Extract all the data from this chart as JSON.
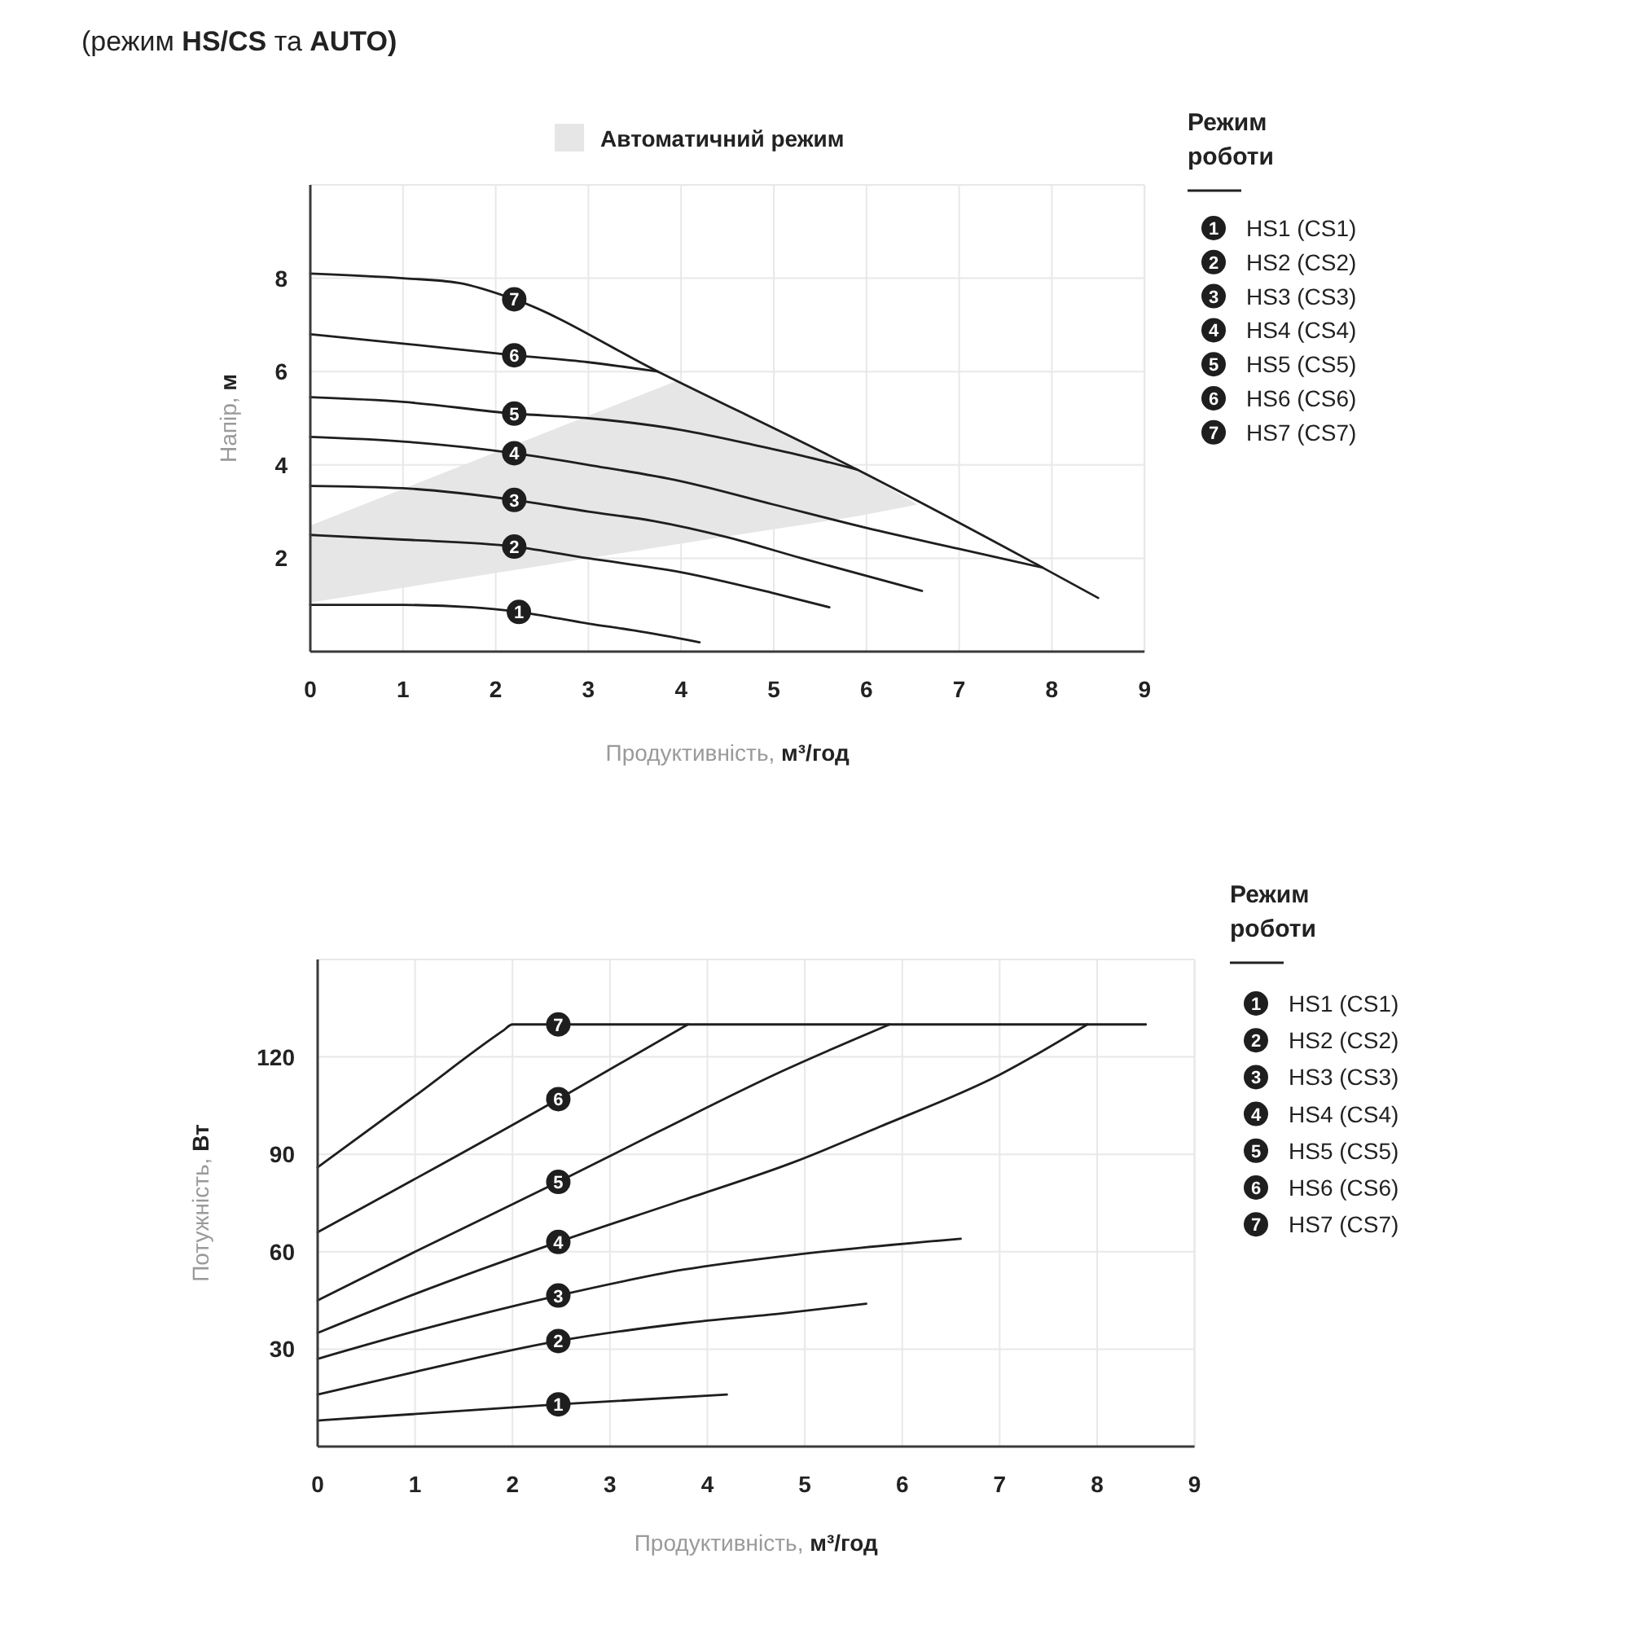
{
  "chart_data": [
    {
      "type": "line",
      "title": "(режим HS/CS та AUTO)",
      "xlabel": "Продуктивність, м³/год",
      "ylabel": "Напір, м",
      "legend_title": "Режим роботи",
      "xlim": [
        0,
        9
      ],
      "xticks": [
        0,
        1,
        2,
        3,
        4,
        5,
        6,
        7,
        8,
        9
      ],
      "ylim": [
        0,
        10
      ],
      "yticks": [
        2,
        4,
        6,
        8
      ],
      "grid": true,
      "legend": "top right",
      "series": [
        {
          "name": "Автоматичний режим",
          "color": "#e6e6e6",
          "x": [
            0,
            3.95,
            5.9,
            6.55
          ],
          "values": [
            null,
            null,
            null,
            null
          ],
          "lower": [
            1.05,
            2.3,
            2.9,
            3.15
          ],
          "upper": [
            2.7,
            5.8,
            3.9,
            3.15
          ]
        },
        {
          "name": "HS1 (CS1)",
          "color": "#1e1e1e",
          "x": [
            0,
            1,
            1.75,
            2.25,
            3,
            3.5,
            4.2
          ],
          "values": [
            1.0,
            1.0,
            0.95,
            0.85,
            0.6,
            0.45,
            0.2
          ]
        },
        {
          "name": "HS2 (CS2)",
          "color": "#1e1e1e",
          "x": [
            0,
            1,
            2.2,
            3,
            4,
            5,
            5.6
          ],
          "values": [
            2.5,
            2.4,
            2.25,
            2.0,
            1.7,
            1.25,
            0.95
          ]
        },
        {
          "name": "HS3 (CS3)",
          "color": "#1e1e1e",
          "x": [
            0,
            1,
            2.2,
            3,
            3.7,
            4.5,
            5.3,
            6.6
          ],
          "values": [
            3.55,
            3.5,
            3.25,
            3.0,
            2.8,
            2.45,
            2.0,
            1.3
          ]
        },
        {
          "name": "HS4 (CS4)",
          "color": "#1e1e1e",
          "x": [
            0,
            1,
            2.2,
            3,
            4,
            5,
            6,
            7,
            7.9
          ],
          "values": [
            4.6,
            4.5,
            4.25,
            4.0,
            3.65,
            3.15,
            2.65,
            2.2,
            1.8
          ]
        },
        {
          "name": "HS5 (CS5)",
          "color": "#1e1e1e",
          "x": [
            0,
            1,
            2.2,
            3,
            4,
            4.85,
            5.3,
            5.9
          ],
          "values": [
            5.45,
            5.35,
            5.1,
            5.0,
            4.75,
            4.4,
            4.2,
            3.9
          ]
        },
        {
          "name": "HS6 (CS6)",
          "color": "#1e1e1e",
          "x": [
            0,
            1,
            2.2,
            3,
            3.75
          ],
          "values": [
            6.8,
            6.6,
            6.35,
            6.2,
            6.0
          ]
        },
        {
          "name": "HS7 (CS7)",
          "color": "#1e1e1e",
          "x": [
            0,
            1,
            1.6,
            2.2,
            3.75,
            5.9,
            7.9,
            8.5
          ],
          "values": [
            8.1,
            8.0,
            7.9,
            7.55,
            6.0,
            3.9,
            1.8,
            1.15
          ]
        }
      ],
      "annotations": [
        {
          "text": "1",
          "x": 2.25,
          "y": 0.85
        },
        {
          "text": "2",
          "x": 2.2,
          "y": 2.25
        },
        {
          "text": "3",
          "x": 2.2,
          "y": 3.25
        },
        {
          "text": "4",
          "x": 2.2,
          "y": 4.25
        },
        {
          "text": "5",
          "x": 2.2,
          "y": 5.1
        },
        {
          "text": "6",
          "x": 2.2,
          "y": 6.35
        },
        {
          "text": "7",
          "x": 2.2,
          "y": 7.55
        }
      ]
    },
    {
      "type": "line",
      "xlabel": "Продуктивність, м³/год",
      "ylabel": "Потужність, Вт",
      "legend_title": "Режим роботи",
      "xlim": [
        0,
        9
      ],
      "xticks": [
        0,
        1,
        2,
        3,
        4,
        5,
        6,
        7,
        8,
        9
      ],
      "ylim": [
        0,
        150
      ],
      "yticks": [
        30,
        60,
        90,
        120
      ],
      "grid": true,
      "legend": "top right",
      "series": [
        {
          "name": "HS1 (CS1)",
          "color": "#1e1e1e",
          "x": [
            0,
            2.47,
            4.2
          ],
          "values": [
            8,
            13,
            16
          ]
        },
        {
          "name": "HS2 (CS2)",
          "color": "#1e1e1e",
          "x": [
            0,
            1,
            2.47,
            3.76,
            4.76,
            5.63
          ],
          "values": [
            16,
            23,
            32.5,
            38,
            41,
            44
          ]
        },
        {
          "name": "HS3 (CS3)",
          "color": "#1e1e1e",
          "x": [
            0,
            1,
            2.47,
            3.76,
            4.88,
            6.6
          ],
          "values": [
            27,
            35.5,
            46.5,
            54.5,
            59,
            64
          ]
        },
        {
          "name": "HS4 (CS4)",
          "color": "#1e1e1e",
          "x": [
            0,
            1,
            2.47,
            3.76,
            4.88,
            5.77,
            7,
            7.9
          ],
          "values": [
            35,
            47,
            63,
            76,
            87.5,
            98.5,
            114.5,
            130
          ]
        },
        {
          "name": "HS5 (CS5)",
          "color": "#1e1e1e",
          "x": [
            0,
            1,
            2.47,
            3.5,
            4.76,
            5.87
          ],
          "values": [
            45,
            60,
            81.5,
            97,
            115.5,
            130
          ]
        },
        {
          "name": "HS6 (CS6)",
          "color": "#1e1e1e",
          "x": [
            0,
            2.47,
            3.8
          ],
          "values": [
            66,
            107,
            130
          ]
        },
        {
          "name": "HS7 (CS7)",
          "color": "#1e1e1e",
          "x": [
            0,
            1,
            1.9,
            2,
            8.5
          ],
          "values": [
            86,
            108,
            128,
            130,
            130
          ]
        }
      ],
      "annotations": [
        {
          "text": "1",
          "x": 2.47,
          "y": 13
        },
        {
          "text": "2",
          "x": 2.47,
          "y": 32.5
        },
        {
          "text": "3",
          "x": 2.47,
          "y": 46.5
        },
        {
          "text": "4",
          "x": 2.47,
          "y": 63
        },
        {
          "text": "5",
          "x": 2.47,
          "y": 81.5
        },
        {
          "text": "6",
          "x": 2.47,
          "y": 107
        },
        {
          "text": "7",
          "x": 2.47,
          "y": 130
        }
      ]
    }
  ]
}
